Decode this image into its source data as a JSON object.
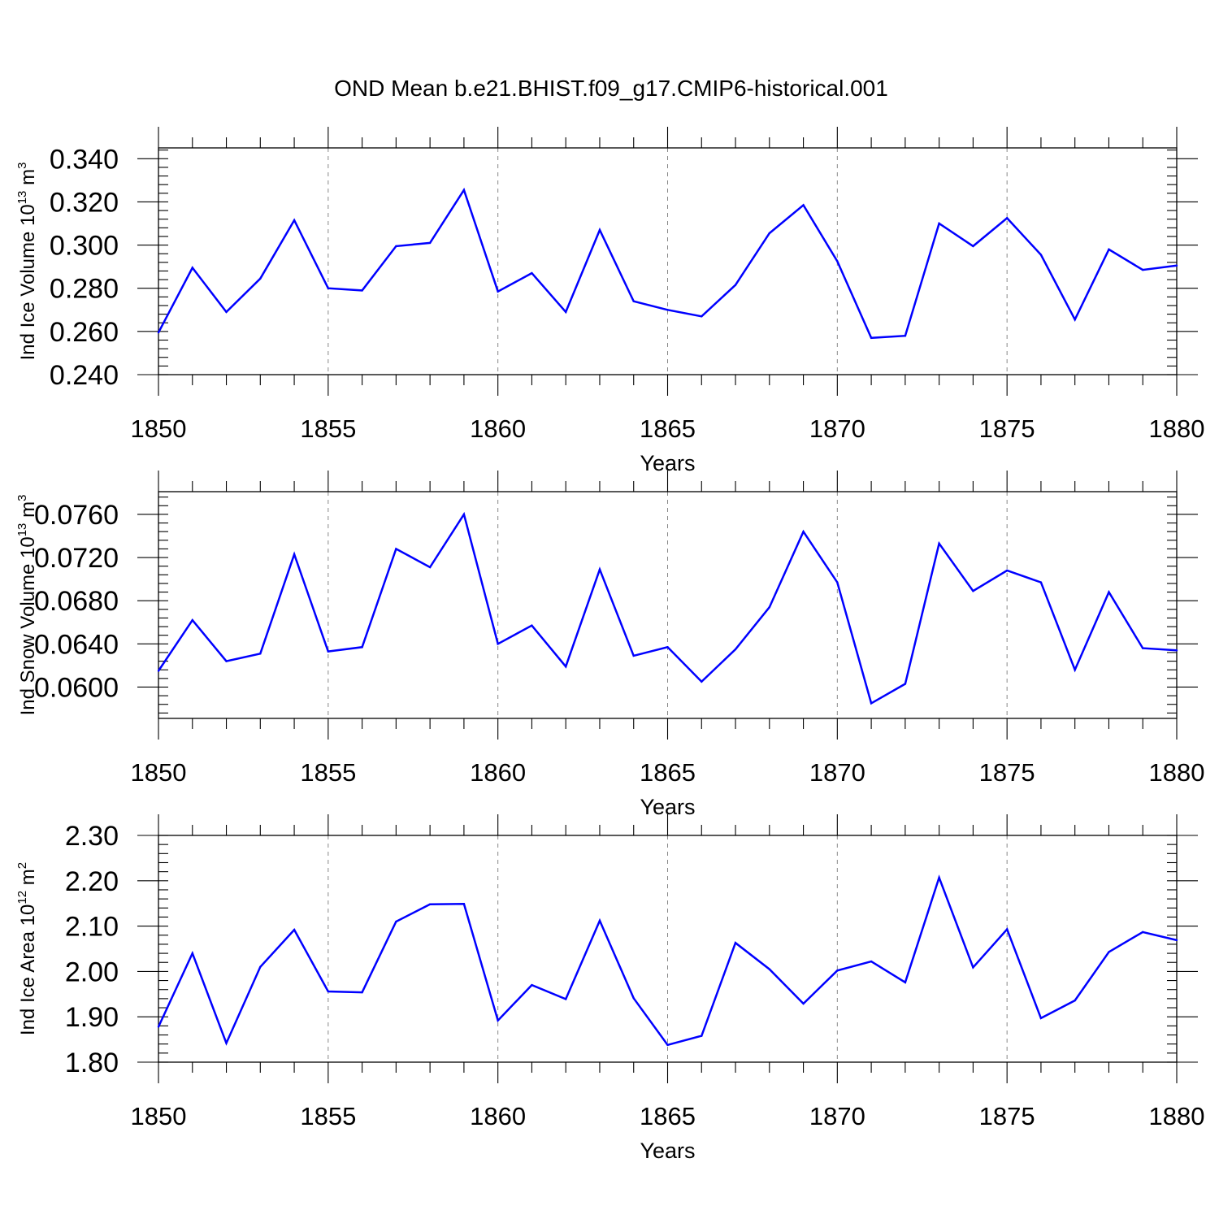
{
  "title": "OND Mean b.e21.BHIST.f09_g17.CMIP6-historical.001",
  "colors": {
    "series": "#0000ff",
    "axis": "#000000",
    "grid": "#888888"
  },
  "chart_data": [
    {
      "type": "line",
      "ylabel": "Ind Ice Volume 10",
      "ylabel_sup1": "13",
      "ylabel_unit": " m",
      "ylabel_sup2": "3",
      "xlabel": "Years",
      "xlim": [
        1850,
        1880
      ],
      "ylim": [
        0.24,
        0.345
      ],
      "yticks": [
        0.24,
        0.26,
        0.28,
        0.3,
        0.32,
        0.34
      ],
      "ytick_labels": [
        "0.240",
        "0.260",
        "0.280",
        "0.300",
        "0.320",
        "0.340"
      ],
      "yminor": 0.004,
      "xticks": [
        1850,
        1855,
        1860,
        1865,
        1870,
        1875,
        1880
      ],
      "xtick_labels": [
        "1850",
        "1855",
        "1860",
        "1865",
        "1870",
        "1875",
        "1880"
      ],
      "x": [
        1850,
        1851,
        1852,
        1853,
        1854,
        1855,
        1856,
        1857,
        1858,
        1859,
        1860,
        1861,
        1862,
        1863,
        1864,
        1865,
        1866,
        1867,
        1868,
        1869,
        1870,
        1871,
        1872,
        1873,
        1874,
        1875,
        1876,
        1877,
        1878,
        1879,
        1880
      ],
      "y": [
        0.2595,
        0.2895,
        0.269,
        0.2845,
        0.3115,
        0.28,
        0.279,
        0.2995,
        0.301,
        0.3255,
        0.2785,
        0.287,
        0.269,
        0.307,
        0.274,
        0.27,
        0.267,
        0.2815,
        0.3055,
        0.3185,
        0.2925,
        0.257,
        0.258,
        0.31,
        0.2995,
        0.3125,
        0.2955,
        0.2655,
        0.298,
        0.2885,
        0.2905
      ]
    },
    {
      "type": "line",
      "ylabel": "Ind Snow Volume 10",
      "ylabel_sup1": "13",
      "ylabel_unit": " m",
      "ylabel_sup2": "3",
      "xlabel": "Years",
      "xlim": [
        1850,
        1880
      ],
      "ylim": [
        0.0571,
        0.0781
      ],
      "yticks": [
        0.06,
        0.064,
        0.068,
        0.072,
        0.076
      ],
      "ytick_labels": [
        "0.0600",
        "0.0640",
        "0.0680",
        "0.0720",
        "0.0760"
      ],
      "yminor": 0.0008,
      "xticks": [
        1850,
        1855,
        1860,
        1865,
        1870,
        1875,
        1880
      ],
      "xtick_labels": [
        "1850",
        "1855",
        "1860",
        "1865",
        "1870",
        "1875",
        "1880"
      ],
      "x": [
        1850,
        1851,
        1852,
        1853,
        1854,
        1855,
        1856,
        1857,
        1858,
        1859,
        1860,
        1861,
        1862,
        1863,
        1864,
        1865,
        1866,
        1867,
        1868,
        1869,
        1870,
        1871,
        1872,
        1873,
        1874,
        1875,
        1876,
        1877,
        1878,
        1879,
        1880
      ],
      "y": [
        0.0615,
        0.0662,
        0.0624,
        0.0631,
        0.0723,
        0.0633,
        0.0637,
        0.0728,
        0.0711,
        0.076,
        0.064,
        0.0657,
        0.0619,
        0.0709,
        0.0629,
        0.0637,
        0.0605,
        0.0635,
        0.0674,
        0.0744,
        0.0697,
        0.0585,
        0.0603,
        0.0733,
        0.0689,
        0.0708,
        0.0697,
        0.0616,
        0.0688,
        0.0636,
        0.0634
      ]
    },
    {
      "type": "line",
      "ylabel": "Ind Ice Area 10",
      "ylabel_sup1": "12",
      "ylabel_unit": " m",
      "ylabel_sup2": "2",
      "xlabel": "Years",
      "xlim": [
        1850,
        1880
      ],
      "ylim": [
        1.8,
        2.3
      ],
      "yticks": [
        1.8,
        1.9,
        2.0,
        2.1,
        2.2,
        2.3
      ],
      "ytick_labels": [
        "1.80",
        "1.90",
        "2.00",
        "2.10",
        "2.20",
        "2.30"
      ],
      "yminor": 0.02,
      "xticks": [
        1850,
        1855,
        1860,
        1865,
        1870,
        1875,
        1880
      ],
      "xtick_labels": [
        "1850",
        "1855",
        "1860",
        "1865",
        "1870",
        "1875",
        "1880"
      ],
      "x": [
        1850,
        1851,
        1852,
        1853,
        1854,
        1855,
        1856,
        1857,
        1858,
        1859,
        1860,
        1861,
        1862,
        1863,
        1864,
        1865,
        1866,
        1867,
        1868,
        1869,
        1870,
        1871,
        1872,
        1873,
        1874,
        1875,
        1876,
        1877,
        1878,
        1879,
        1880
      ],
      "y": [
        1.878,
        2.04,
        1.842,
        2.01,
        2.092,
        1.956,
        1.954,
        2.11,
        2.148,
        2.149,
        1.892,
        1.97,
        1.939,
        2.112,
        1.941,
        1.838,
        1.858,
        2.063,
        2.005,
        1.929,
        2.002,
        2.022,
        1.976,
        2.207,
        2.009,
        2.093,
        1.897,
        1.936,
        2.043,
        2.087,
        2.069
      ]
    }
  ]
}
